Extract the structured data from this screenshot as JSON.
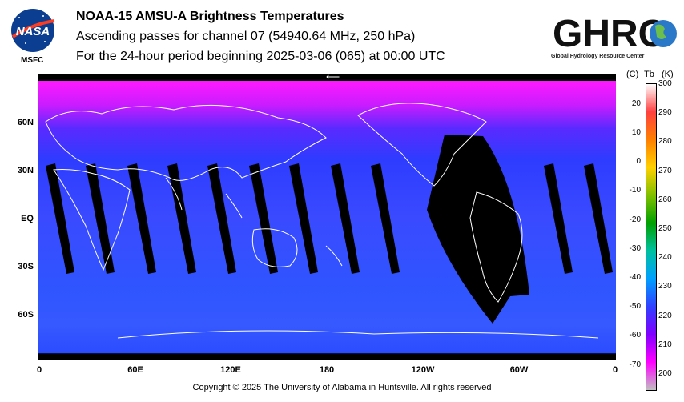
{
  "header": {
    "title": "NOAA-15 AMSU-A Brightness Temperatures",
    "subtitle": "Ascending passes for channel 07 (54940.64 MHz, 250 hPa)",
    "period": "For the 24-hour period beginning 2025-03-06 (065) at 00:00 UTC"
  },
  "logos": {
    "nasa_text": "NASA",
    "msfc_label": "MSFC",
    "ghrc_text": "GHRC",
    "ghrc_subtitle": "Global Hydrology Resource Center"
  },
  "map": {
    "lat_labels": [
      "60N",
      "30N",
      "EQ",
      "30S",
      "60S"
    ],
    "lon_labels": [
      "0",
      "60E",
      "120E",
      "180",
      "120W",
      "60W",
      "0"
    ],
    "arrow_glyph": "⟵"
  },
  "colorbar": {
    "header_c": "(C)",
    "header_tb": "Tb",
    "header_k": "(K)",
    "celsius_ticks": [
      "20",
      "10",
      "0",
      "-10",
      "-20",
      "-30",
      "-40",
      "-50",
      "-60",
      "-70"
    ],
    "kelvin_ticks": [
      "300",
      "290",
      "280",
      "270",
      "260",
      "250",
      "240",
      "230",
      "220",
      "210",
      "200"
    ],
    "stops": [
      "#ffffff",
      "#ff4040",
      "#ff8000",
      "#ffd000",
      "#80c000",
      "#00a000",
      "#00c0a0",
      "#00a0ff",
      "#3040ff",
      "#8000ff",
      "#ff00ff",
      "#c0c0c0"
    ]
  },
  "footer": {
    "copyright": "Copyright © 2025 The University of Alabama in Huntsville.  All rights reserved"
  }
}
